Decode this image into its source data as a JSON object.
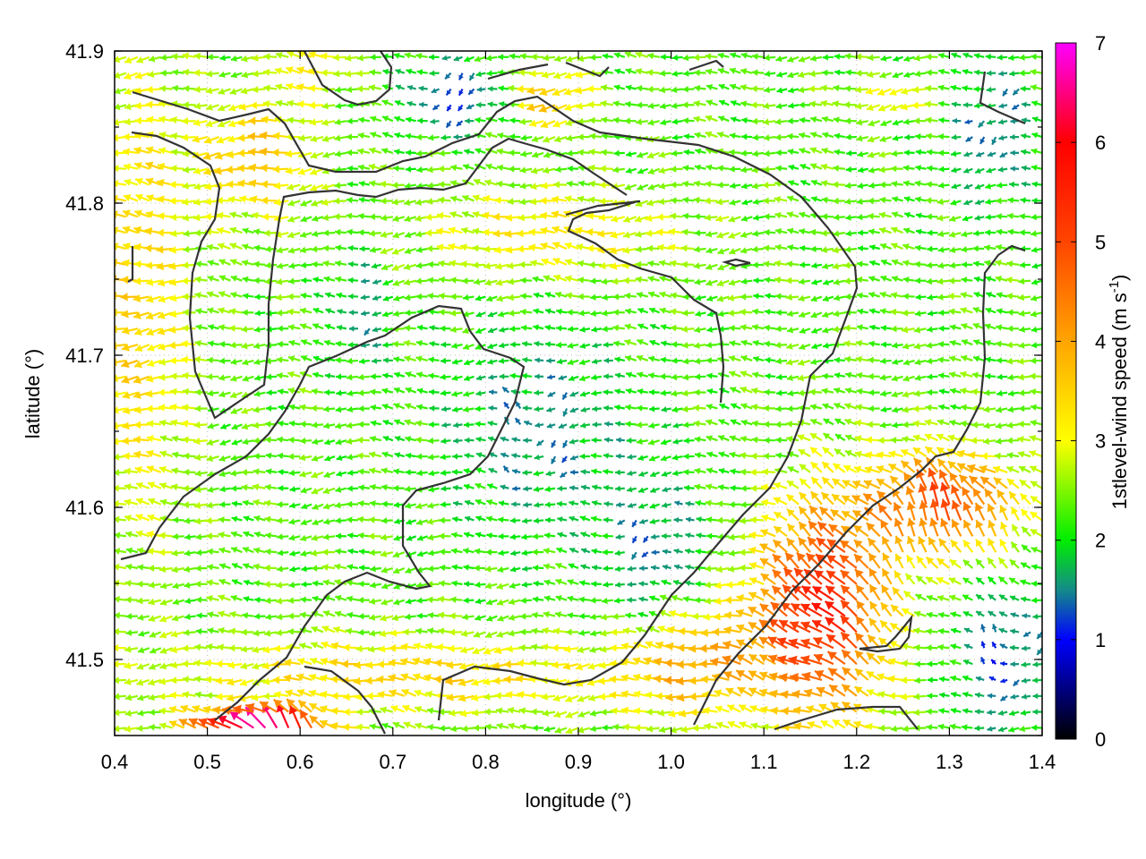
{
  "chart_data": {
    "type": "vector-field",
    "xlabel": "longitude (°)",
    "ylabel": "latitude (°)",
    "xlim": [
      0.4,
      1.4
    ],
    "ylim": [
      41.45,
      41.9
    ],
    "x_ticks": [
      "0.4",
      "0.5",
      "0.6",
      "0.7",
      "0.8",
      "0.9",
      "1.0",
      "1.1",
      "1.2",
      "1.3",
      "1.4"
    ],
    "x_tick_values": [
      0.4,
      0.5,
      0.6,
      0.7,
      0.8,
      0.9,
      1.0,
      1.1,
      1.2,
      1.3,
      1.4
    ],
    "y_ticks": [
      "41.5",
      "41.6",
      "41.7",
      "41.8",
      "41.9"
    ],
    "y_tick_values": [
      41.5,
      41.6,
      41.7,
      41.8,
      41.9
    ],
    "grid": "dotted",
    "colorbar": {
      "label_text": "1stlevel-wind speed (m s",
      "label_sup": "-1",
      "label_close": ")",
      "range": [
        0,
        7
      ],
      "ticks": [
        "0",
        "1",
        "2",
        "3",
        "4",
        "5",
        "6",
        "7"
      ],
      "tick_values": [
        0,
        1,
        2,
        3,
        4,
        5,
        6,
        7
      ],
      "colormap": [
        {
          "value": 0,
          "color": "#000000"
        },
        {
          "value": 1,
          "color": "#0000ff"
        },
        {
          "value": 1.5,
          "color": "#148a8a"
        },
        {
          "value": 2,
          "color": "#00ee00"
        },
        {
          "value": 3,
          "color": "#ffff00"
        },
        {
          "value": 4,
          "color": "#ffa500"
        },
        {
          "value": 5,
          "color": "#ff4500"
        },
        {
          "value": 6,
          "color": "#ff0000"
        },
        {
          "value": 7,
          "color": "#ff00ff"
        }
      ]
    },
    "vector_field": {
      "grid_lon": [
        0.4,
        1.4,
        0.0125
      ],
      "grid_lat": [
        41.455,
        41.9,
        0.0105
      ],
      "predominant_direction": "from east (vectors pointing west)",
      "regions": [
        {
          "area": "west coastal strip, lon 0.40-0.47",
          "speed": 3.4,
          "direction_deg": 180
        },
        {
          "area": "northwest inland, lon 0.50-0.60 lat 41.80-41.88",
          "speed": 3.8,
          "direction_deg": 190
        },
        {
          "area": "central valley, lon 0.80-1.00 lat 41.58-41.75",
          "speed": 1.6,
          "direction_deg": 180
        },
        {
          "area": "north-central plain, lon 0.85-1.10 lat 41.76-41.82",
          "speed": 2.9,
          "direction_deg": 180
        },
        {
          "area": "east plateau, lon 1.12-1.40 lat 41.72-41.90",
          "speed": 2.1,
          "direction_deg": 175
        },
        {
          "area": "southeast jet, lon 1.10-1.25 lat 41.47-41.60",
          "speed": 5.6,
          "direction_deg": 135
        },
        {
          "area": "southeast outflow, lon 1.25-1.40 lat 41.57-41.64",
          "speed": 4.8,
          "direction_deg": 95
        },
        {
          "area": "south coast, lon 0.50-0.70 lat 41.45-41.47",
          "speed": 6.6,
          "direction_deg": 120
        }
      ]
    },
    "contour_lines": "terrain contours (black)"
  }
}
